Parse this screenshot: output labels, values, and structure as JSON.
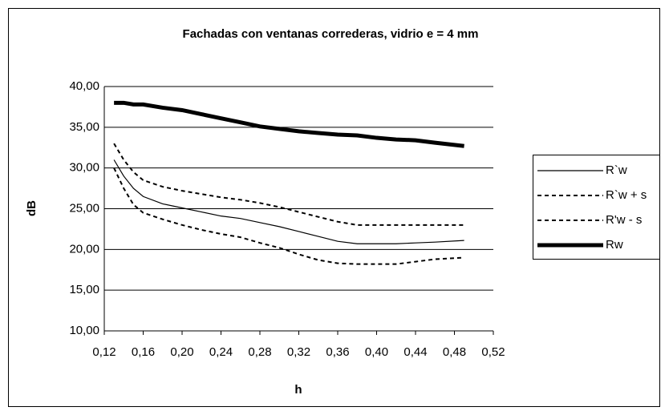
{
  "chart_data": {
    "type": "line",
    "title": "Fachadas con ventanas correderas, vidrio e = 4 mm",
    "xlabel": "h",
    "ylabel": "dB",
    "x": [
      0.13,
      0.14,
      0.15,
      0.16,
      0.18,
      0.2,
      0.22,
      0.24,
      0.26,
      0.28,
      0.3,
      0.32,
      0.34,
      0.36,
      0.38,
      0.4,
      0.42,
      0.44,
      0.46,
      0.49
    ],
    "series": [
      {
        "name": "R`w",
        "color": "#000000",
        "style": "solid",
        "width": 1.2,
        "values": [
          31,
          29,
          27.5,
          26.5,
          25.6,
          25.1,
          24.6,
          24.1,
          23.8,
          23.3,
          22.8,
          22.2,
          21.6,
          21.0,
          20.7,
          20.7,
          20.7,
          20.8,
          20.9,
          21.1
        ]
      },
      {
        "name": "R`w + s",
        "color": "#000000",
        "style": "dashed",
        "width": 2,
        "values": [
          33,
          31,
          29.5,
          28.5,
          27.7,
          27.2,
          26.8,
          26.4,
          26.1,
          25.7,
          25.2,
          24.6,
          24.0,
          23.4,
          23.0,
          23.0,
          23.0,
          23.0,
          23.0,
          23.0
        ]
      },
      {
        "name": "R'w - s",
        "color": "#000000",
        "style": "dashed",
        "width": 2,
        "values": [
          30,
          27.5,
          25.5,
          24.5,
          23.7,
          23.0,
          22.4,
          21.9,
          21.5,
          20.8,
          20.2,
          19.4,
          18.7,
          18.3,
          18.2,
          18.2,
          18.2,
          18.5,
          18.8,
          19.0
        ]
      },
      {
        "name": "Rw",
        "color": "#000000",
        "style": "solid",
        "width": 5,
        "values": [
          38,
          38,
          37.8,
          37.8,
          37.4,
          37.1,
          36.6,
          36.1,
          35.6,
          35.1,
          34.8,
          34.5,
          34.3,
          34.1,
          34.0,
          33.7,
          33.5,
          33.4,
          33.1,
          32.7
        ]
      }
    ],
    "xlim": [
      0.12,
      0.52
    ],
    "xticks": [
      {
        "value": 0.12,
        "label": "0,12"
      },
      {
        "value": 0.16,
        "label": "0,16"
      },
      {
        "value": 0.2,
        "label": "0,20"
      },
      {
        "value": 0.24,
        "label": "0,24"
      },
      {
        "value": 0.28,
        "label": "0,28"
      },
      {
        "value": 0.32,
        "label": "0,32"
      },
      {
        "value": 0.36,
        "label": "0,36"
      },
      {
        "value": 0.4,
        "label": "0,40"
      },
      {
        "value": 0.44,
        "label": "0,44"
      },
      {
        "value": 0.48,
        "label": "0,48"
      },
      {
        "value": 0.52,
        "label": "0,52"
      }
    ],
    "ylim": [
      10,
      40
    ],
    "yticks": [
      {
        "value": 10,
        "label": "10,00"
      },
      {
        "value": 15,
        "label": "15,00"
      },
      {
        "value": 20,
        "label": "20,00"
      },
      {
        "value": 25,
        "label": "25,00"
      },
      {
        "value": 30,
        "label": "30,00"
      },
      {
        "value": 35,
        "label": "35,00"
      },
      {
        "value": 40,
        "label": "40,00"
      }
    ],
    "grid": true,
    "legend": "right"
  }
}
